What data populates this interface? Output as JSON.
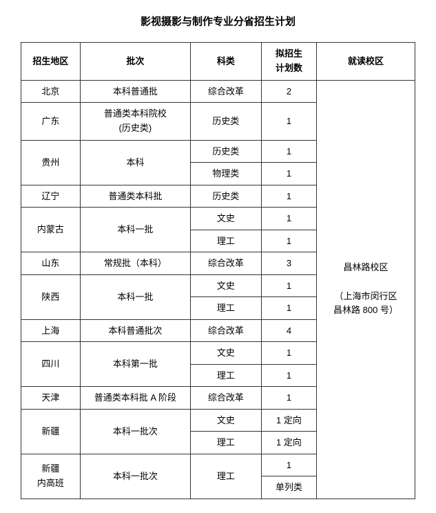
{
  "title": "影视摄影与制作专业分省招生计划",
  "headers": {
    "region": "招生地区",
    "batch": "批次",
    "subject": "科类",
    "plan_line1": "拟招生",
    "plan_line2": "计划数",
    "campus": "就读校区"
  },
  "campus_line1": "昌林路校区",
  "campus_line2": "（上海市闵行区",
  "campus_line3": "昌林路 800 号）",
  "rows": {
    "r0_region": "北京",
    "r0_batch": "本科普通批",
    "r0_subject": "综合改革",
    "r0_plan": "2",
    "r1_region": "广东",
    "r1_batch_l1": "普通类本科院校",
    "r1_batch_l2": "(历史类)",
    "r1_subject": "历史类",
    "r1_plan": "1",
    "r2_region": "贵州",
    "r2_batch": "本科",
    "r2_subject": "历史类",
    "r2_plan": "1",
    "r3_subject": "物理类",
    "r3_plan": "1",
    "r4_region": "辽宁",
    "r4_batch": "普通类本科批",
    "r4_subject": "历史类",
    "r4_plan": "1",
    "r5_region": "内蒙古",
    "r5_batch": "本科一批",
    "r5_subject": "文史",
    "r5_plan": "1",
    "r6_subject": "理工",
    "r6_plan": "1",
    "r7_region": "山东",
    "r7_batch": "常规批（本科）",
    "r7_subject": "综合改革",
    "r7_plan": "3",
    "r8_region": "陕西",
    "r8_batch": "本科一批",
    "r8_subject": "文史",
    "r8_plan": "1",
    "r9_subject": "理工",
    "r9_plan": "1",
    "r10_region": "上海",
    "r10_batch": "本科普通批次",
    "r10_subject": "综合改革",
    "r10_plan": "4",
    "r11_region": "四川",
    "r11_batch": "本科第一批",
    "r11_subject": "文史",
    "r11_plan": "1",
    "r12_subject": "理工",
    "r12_plan": "1",
    "r13_region": "天津",
    "r13_batch": "普通类本科批 A 阶段",
    "r13_subject": "综合改革",
    "r13_plan": "1",
    "r14_region": "新疆",
    "r14_batch": "本科一批次",
    "r14_subject": "文史",
    "r14_plan": "1 定向",
    "r15_subject": "理工",
    "r15_plan": "1 定向",
    "r16_region_l1": "新疆",
    "r16_region_l2": "内高班",
    "r16_batch": "本科一批次",
    "r16_subject": "理工",
    "r16_plan_l1": "1",
    "r16_plan_l2": "单列类"
  }
}
